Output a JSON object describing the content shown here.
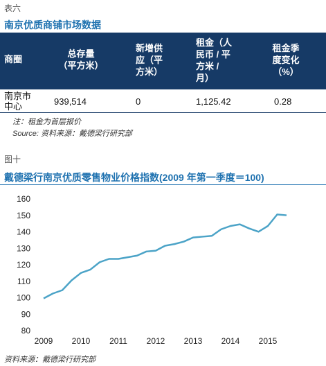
{
  "table_section": {
    "label": "表六",
    "title": "南京优质商铺市场数据",
    "headers": [
      [
        "商圈"
      ],
      [
        "总存量",
        "（平方米）"
      ],
      [
        "新增供",
        "应（平",
        "方米）"
      ],
      [
        "租金（人",
        "民币 / 平",
        "方米 /",
        "月）"
      ],
      [
        "租金季",
        "度变化",
        "（%）"
      ]
    ],
    "rows": [
      [
        [
          "南京市",
          "中心"
        ],
        "939,514",
        "0",
        "1,125.42",
        "0.28"
      ]
    ],
    "note": "注：租金为首层报价",
    "source": "Source: 资料来源：戴德梁行研究部"
  },
  "figure_label": "图十",
  "chart_data": {
    "type": "line",
    "title": "戴德梁行南京优质零售物业价格指数(2009 年第一季度＝100)",
    "categories": [
      "2009",
      null,
      null,
      null,
      "2010",
      null,
      null,
      null,
      "2011",
      null,
      null,
      null,
      "2012",
      null,
      null,
      null,
      "2013",
      null,
      null,
      null,
      "2014",
      null,
      null,
      null,
      "2015",
      null,
      null
    ],
    "values": [
      100,
      103,
      105,
      111,
      115.5,
      117.5,
      122,
      124,
      124,
      125,
      126,
      128.5,
      129,
      132,
      133,
      134.5,
      137,
      137.5,
      138,
      142,
      144,
      145,
      142.5,
      140.5,
      144,
      151,
      150.5
    ],
    "color": "#4ba3c7",
    "ylim": [
      80,
      160
    ],
    "yticks": [
      80,
      90,
      100,
      110,
      120,
      130,
      140,
      150,
      160
    ],
    "grid": false,
    "source": "资料来源：戴德梁行研究部"
  }
}
